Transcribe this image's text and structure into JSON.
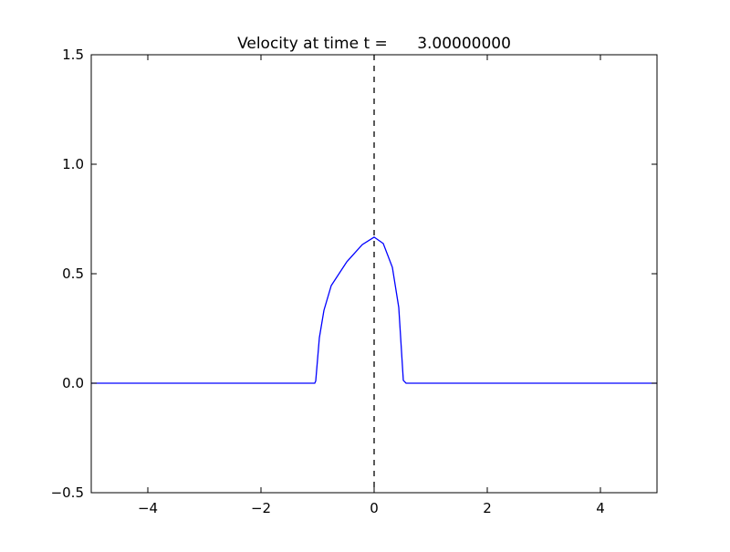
{
  "chart_data": {
    "type": "line",
    "title": "Velocity at time t =      3.00000000",
    "xlabel": "",
    "ylabel": "",
    "xlim": [
      -5,
      5
    ],
    "ylim": [
      -0.5,
      1.5
    ],
    "xticks": [
      -4,
      -2,
      0,
      2,
      4
    ],
    "xtick_labels": [
      "−4",
      "−2",
      "0",
      "2",
      "4"
    ],
    "yticks": [
      -0.5,
      0.0,
      0.5,
      1.0,
      1.5
    ],
    "ytick_labels": [
      "−0.5",
      "0.0",
      "0.5",
      "1.0",
      "1.5"
    ],
    "grid": false,
    "series": [
      {
        "color": "#0000ff",
        "x": [
          -5,
          -1.05,
          -1.032,
          -0.968,
          -0.887,
          -0.758,
          -0.484,
          -0.21,
          0,
          0.161,
          0.323,
          0.435,
          0.516,
          0.565,
          5
        ],
        "y": [
          0,
          0,
          0.01,
          0.208,
          0.333,
          0.446,
          0.554,
          0.633,
          0.667,
          0.638,
          0.529,
          0.346,
          0.013,
          0,
          0
        ]
      }
    ],
    "vlines": [
      {
        "x": 0,
        "style": "dashed",
        "color": "#000000"
      }
    ]
  }
}
